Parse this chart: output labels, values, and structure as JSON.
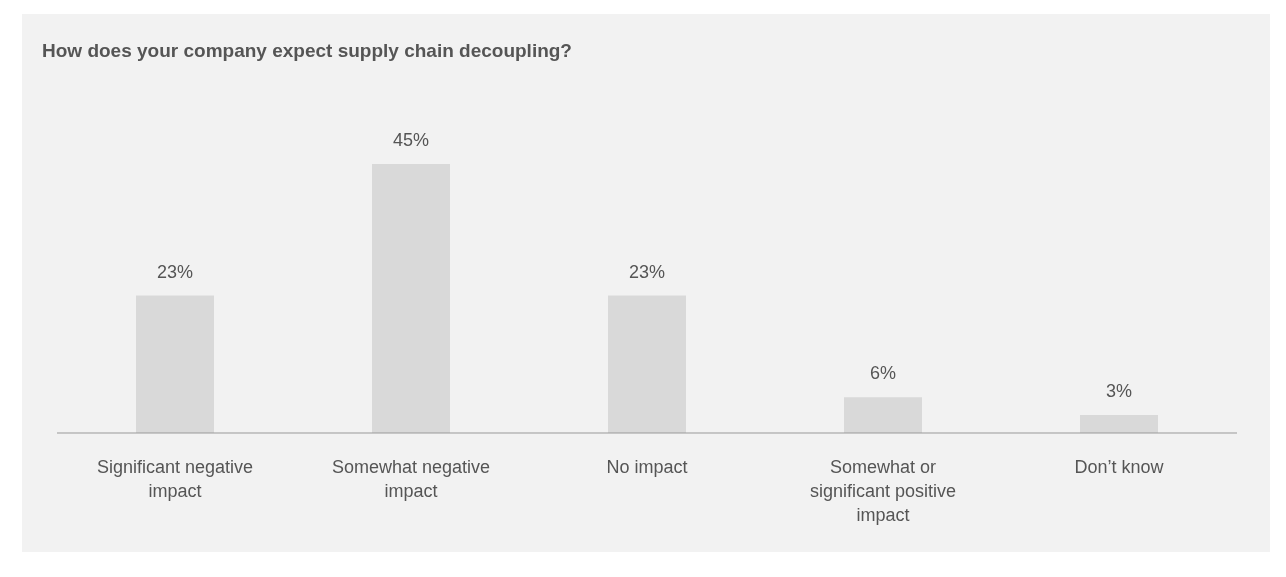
{
  "chart_data": {
    "type": "bar",
    "title": "How does your company expect supply chain decoupling?",
    "categories": [
      "Significant negative impact",
      "Somewhat negative impact",
      "No impact",
      "Somewhat or significant positive impact",
      "Don’t know"
    ],
    "values": [
      23,
      45,
      23,
      6,
      3
    ],
    "color": "#d9d9d9",
    "data_labels": true,
    "value_labels": [
      "23%",
      "45%",
      "23%",
      "6%",
      "3%"
    ],
    "grid": false,
    "legend": false
  }
}
